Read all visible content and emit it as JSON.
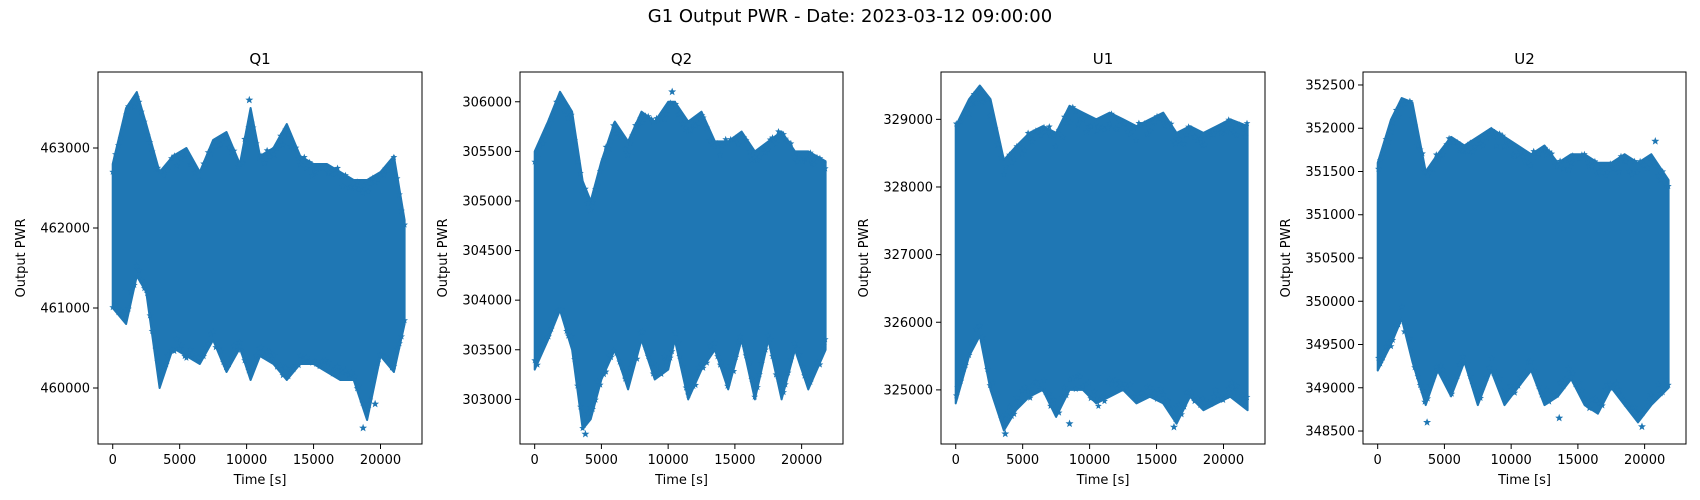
{
  "figure": {
    "suptitle": "G1 Output PWR - Date: 2023-03-12 09:00:00"
  },
  "chart_data": [
    {
      "type": "scatter",
      "title": "Q1",
      "xlabel": "Time [s]",
      "ylabel": "Output PWR",
      "xlim": [
        -1100,
        23100
      ],
      "ylim": [
        459300,
        463950
      ],
      "xticks": [
        0,
        5000,
        10000,
        15000,
        20000
      ],
      "yticks": [
        460000,
        461000,
        462000,
        463000
      ],
      "marker": "star",
      "color": "#1f77b4",
      "grid": false,
      "x": [
        0,
        1000,
        1800,
        2500,
        3500,
        4500,
        5500,
        6500,
        7500,
        8500,
        9500,
        10300,
        11000,
        12000,
        13000,
        14000,
        15000,
        16000,
        17000,
        18000,
        19000,
        20000,
        21000,
        21800
      ],
      "upper": [
        462800,
        463500,
        463700,
        463300,
        462700,
        462900,
        463000,
        462700,
        463100,
        463200,
        462800,
        463500,
        462900,
        463000,
        463300,
        462900,
        462800,
        462800,
        462700,
        462600,
        462600,
        462700,
        462900,
        462100
      ],
      "lower": [
        461000,
        460800,
        461400,
        461200,
        460000,
        460500,
        460400,
        460300,
        460600,
        460200,
        460500,
        460100,
        460400,
        460300,
        460100,
        460300,
        460300,
        460200,
        460100,
        460100,
        459600,
        460400,
        460200,
        460800
      ],
      "outliers": [
        [
          10200,
          463600
        ],
        [
          18700,
          459500
        ],
        [
          19600,
          459800
        ]
      ]
    },
    {
      "type": "scatter",
      "title": "Q2",
      "xlabel": "Time [s]",
      "ylabel": "Output PWR",
      "xlim": [
        -1100,
        23100
      ],
      "ylim": [
        302550,
        306300
      ],
      "xticks": [
        0,
        5000,
        10000,
        15000,
        20000
      ],
      "yticks": [
        303000,
        303500,
        304000,
        304500,
        305000,
        305500,
        306000
      ],
      "marker": "star",
      "color": "#1f77b4",
      "grid": false,
      "x": [
        0,
        1000,
        1900,
        2800,
        3600,
        4200,
        5000,
        6000,
        7000,
        8000,
        9000,
        10000,
        10500,
        11500,
        12500,
        13500,
        14500,
        15500,
        16500,
        17500,
        18500,
        19500,
        20500,
        21800
      ],
      "upper": [
        305500,
        305800,
        306100,
        305900,
        305200,
        305000,
        305400,
        305800,
        305600,
        305900,
        305800,
        306000,
        306000,
        305800,
        305900,
        305600,
        305600,
        305700,
        305500,
        305600,
        305700,
        305500,
        305500,
        305400
      ],
      "lower": [
        303300,
        303600,
        303900,
        303500,
        302700,
        302800,
        303200,
        303500,
        303100,
        303600,
        303200,
        303300,
        303600,
        303000,
        303300,
        303500,
        303100,
        303600,
        303000,
        303600,
        303000,
        303500,
        303100,
        303500
      ],
      "outliers": [
        [
          3800,
          302650
        ],
        [
          10300,
          306100
        ]
      ]
    },
    {
      "type": "scatter",
      "title": "U1",
      "xlabel": "Time [s]",
      "ylabel": "Output PWR",
      "xlim": [
        -1100,
        23100
      ],
      "ylim": [
        324200,
        329700
      ],
      "xticks": [
        0,
        5000,
        10000,
        15000,
        20000
      ],
      "yticks": [
        325000,
        326000,
        327000,
        328000,
        329000
      ],
      "marker": "star",
      "color": "#1f77b4",
      "grid": false,
      "x": [
        0,
        1000,
        1800,
        2600,
        3600,
        4500,
        5500,
        6500,
        7500,
        8500,
        9500,
        10500,
        11500,
        12500,
        13500,
        14500,
        15500,
        16500,
        17500,
        18500,
        19500,
        20500,
        21800
      ],
      "upper": [
        328900,
        329300,
        329500,
        329300,
        328400,
        328600,
        328800,
        328900,
        328800,
        329200,
        329100,
        329000,
        329100,
        329000,
        328900,
        329000,
        329100,
        328800,
        328900,
        328800,
        328900,
        329000,
        328900
      ],
      "lower": [
        324800,
        325500,
        325800,
        325000,
        324400,
        324700,
        324900,
        325000,
        324600,
        325000,
        325000,
        324800,
        324900,
        325000,
        324800,
        324900,
        324800,
        324500,
        324900,
        324700,
        324800,
        324900,
        324700
      ],
      "outliers": [
        [
          3700,
          324350
        ],
        [
          8500,
          324500
        ],
        [
          16300,
          324450
        ]
      ]
    },
    {
      "type": "scatter",
      "title": "U2",
      "xlabel": "Time [s]",
      "ylabel": "Output PWR",
      "xlim": [
        -1100,
        23100
      ],
      "ylim": [
        348350,
        352650
      ],
      "xticks": [
        0,
        5000,
        10000,
        15000,
        20000
      ],
      "yticks": [
        348500,
        349000,
        349500,
        350000,
        350500,
        351000,
        351500,
        352000,
        352500
      ],
      "marker": "star",
      "color": "#1f77b4",
      "grid": false,
      "x": [
        0,
        1000,
        1800,
        2600,
        3600,
        4500,
        5500,
        6500,
        7500,
        8500,
        9500,
        10500,
        11500,
        12500,
        13500,
        14500,
        15500,
        16500,
        17500,
        18500,
        19500,
        20500,
        21800
      ],
      "upper": [
        351600,
        352100,
        352350,
        352300,
        351500,
        351700,
        351900,
        351800,
        351900,
        352000,
        351900,
        351800,
        351700,
        351800,
        351600,
        351700,
        351700,
        351600,
        351600,
        351700,
        351600,
        351700,
        351400
      ],
      "lower": [
        349200,
        349500,
        349800,
        349300,
        348800,
        349200,
        348900,
        349300,
        348800,
        349200,
        348800,
        349000,
        349200,
        348800,
        348900,
        349100,
        348800,
        348700,
        349000,
        348800,
        348600,
        348800,
        349000
      ],
      "outliers": [
        [
          3700,
          348600
        ],
        [
          13600,
          348650
        ],
        [
          19800,
          348550
        ],
        [
          20800,
          351850
        ]
      ]
    }
  ]
}
